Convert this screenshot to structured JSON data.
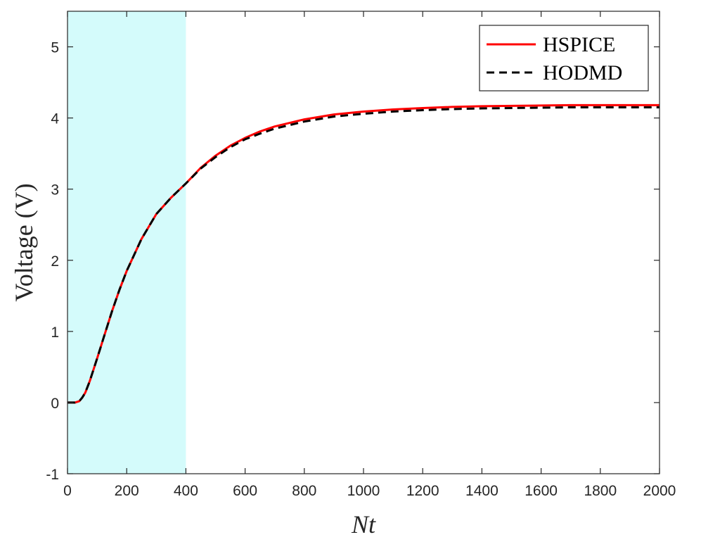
{
  "chart_data": {
    "type": "line",
    "title": "",
    "xlabel": "Nt",
    "ylabel": "Voltage (V)",
    "xlim": [
      0,
      2000
    ],
    "ylim": [
      -1,
      5.5
    ],
    "xticks": [
      0,
      200,
      400,
      600,
      800,
      1000,
      1200,
      1400,
      1600,
      1800,
      2000
    ],
    "yticks": [
      -1,
      0,
      1,
      2,
      3,
      4,
      5
    ],
    "grid": false,
    "legend_position": "top-right",
    "shaded_region": {
      "x_start": 0,
      "x_end": 400,
      "color": "#d4fbfb"
    },
    "series": [
      {
        "name": "HSPICE",
        "color": "#ff0000",
        "style": "solid",
        "x": [
          0,
          25,
          40,
          50,
          60,
          75,
          100,
          125,
          150,
          175,
          200,
          250,
          300,
          350,
          400,
          450,
          500,
          550,
          600,
          650,
          700,
          800,
          900,
          1000,
          1100,
          1200,
          1300,
          1400,
          1500,
          1600,
          1700,
          1800,
          1900,
          2000
        ],
        "y": [
          0,
          0,
          0.02,
          0.07,
          0.14,
          0.3,
          0.62,
          0.95,
          1.28,
          1.58,
          1.85,
          2.3,
          2.65,
          2.88,
          3.08,
          3.3,
          3.47,
          3.61,
          3.72,
          3.81,
          3.88,
          3.98,
          4.05,
          4.09,
          4.12,
          4.14,
          4.155,
          4.165,
          4.17,
          4.175,
          4.18,
          4.18,
          4.18,
          4.18
        ]
      },
      {
        "name": "HODMD",
        "color": "#000000",
        "style": "dashed",
        "x": [
          0,
          25,
          40,
          50,
          60,
          75,
          100,
          125,
          150,
          175,
          200,
          250,
          300,
          350,
          400,
          450,
          500,
          550,
          600,
          650,
          700,
          800,
          900,
          1000,
          1100,
          1200,
          1300,
          1400,
          1500,
          1600,
          1700,
          1800,
          1900,
          2000
        ],
        "y": [
          0,
          0,
          0.02,
          0.07,
          0.14,
          0.3,
          0.62,
          0.95,
          1.28,
          1.58,
          1.85,
          2.3,
          2.65,
          2.88,
          3.08,
          3.29,
          3.45,
          3.59,
          3.7,
          3.78,
          3.85,
          3.95,
          4.02,
          4.06,
          4.09,
          4.11,
          4.125,
          4.135,
          4.14,
          4.145,
          4.15,
          4.15,
          4.15,
          4.15
        ]
      }
    ]
  }
}
